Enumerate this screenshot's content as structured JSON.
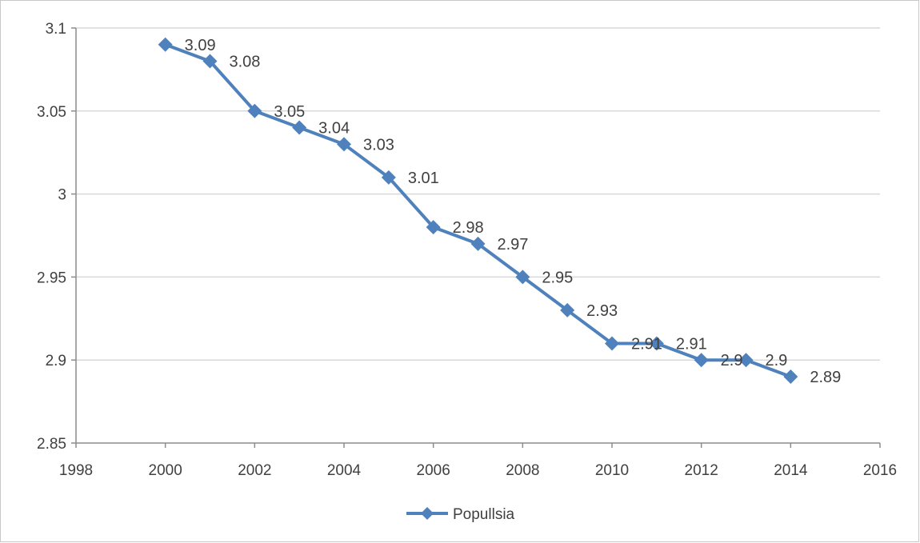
{
  "chart_data": {
    "type": "line",
    "title": "",
    "xlabel": "",
    "ylabel": "",
    "xlim": [
      1998,
      2016
    ],
    "ylim": [
      2.85,
      3.1
    ],
    "x_ticks": [
      "1998",
      "2000",
      "2002",
      "2004",
      "2006",
      "2008",
      "2010",
      "2012",
      "2014",
      "2016"
    ],
    "y_ticks": [
      "2.85",
      "2.9",
      "2.95",
      "3",
      "3.05",
      "3.1"
    ],
    "grid": "horizontal",
    "legend": "bottom",
    "series": [
      {
        "name": "Popullsia",
        "color": "#4f81bd",
        "marker": "diamond",
        "x": [
          2000,
          2001,
          2002,
          2003,
          2004,
          2005,
          2006,
          2007,
          2008,
          2009,
          2010,
          2011,
          2012,
          2013,
          2014
        ],
        "values": [
          3.09,
          3.08,
          3.05,
          3.04,
          3.03,
          3.01,
          2.98,
          2.97,
          2.95,
          2.93,
          2.91,
          2.91,
          2.9,
          2.9,
          2.89
        ],
        "labels": [
          "3.09",
          "3.08",
          "3.05",
          "3.04",
          "3.03",
          "3.01",
          "2.98",
          "2.97",
          "2.95",
          "2.93",
          "2.91",
          "2.91",
          "2.9",
          "2.9",
          "2.89"
        ]
      }
    ]
  }
}
